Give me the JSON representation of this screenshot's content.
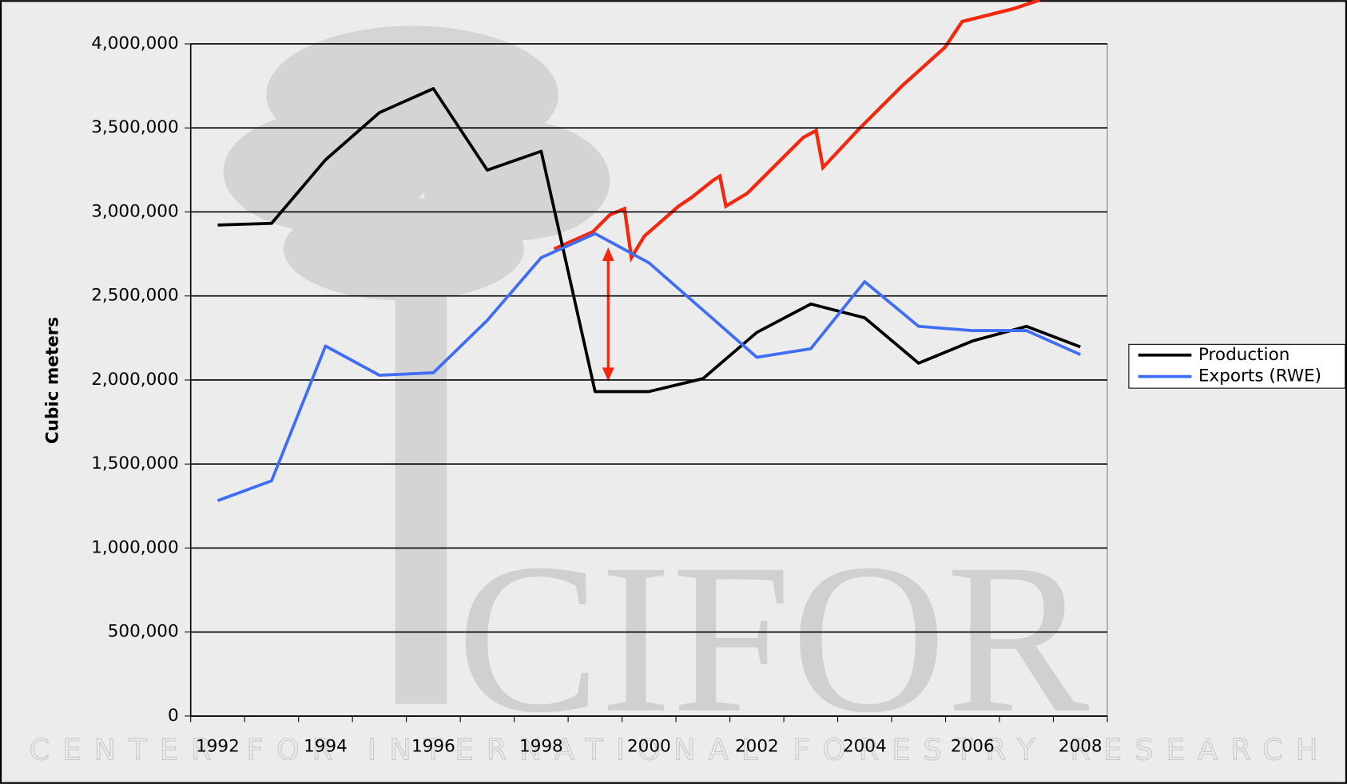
{
  "chart_data": {
    "type": "line",
    "y_label": "Cubic meters",
    "categories": [
      "1992",
      null,
      "1994",
      null,
      "1996",
      null,
      "1998",
      null,
      "2000",
      null,
      "2002",
      null,
      "2004",
      null,
      "2006",
      null,
      "2008"
    ],
    "series": [
      {
        "name": "Production",
        "color": "#000000",
        "values": [
          2922000,
          2932000,
          3310000,
          3591000,
          3734000,
          3249000,
          3361000,
          1931000,
          1931000,
          2008000,
          2283000,
          2452000,
          2370000,
          2100000,
          2232000,
          2319000,
          2197000
        ]
      },
      {
        "name": "Exports (RWE)",
        "color": "#3f6ef5",
        "values": [
          1282000,
          1400000,
          2202000,
          2028000,
          2043000,
          2355000,
          2728000,
          2871000,
          2697000,
          2416000,
          2135000,
          2186000,
          2585000,
          2319000,
          2294000,
          2294000,
          2151000
        ]
      }
    ],
    "ylim": [
      0,
      4000000
    ],
    "yticks": [
      0,
      {
        "value": 500000,
        "label": "500,000"
      },
      {
        "value": 1000000,
        "label": "1,000,000"
      },
      {
        "value": 1500000,
        "label": "1,500,000"
      },
      {
        "value": 2000000,
        "label": "2,000,000"
      },
      {
        "value": 2500000,
        "label": "2,500,000"
      },
      {
        "value": 3000000,
        "label": "3,000,000"
      },
      {
        "value": 3500000,
        "label": "3,500,000"
      },
      {
        "value": 4000000,
        "label": "4,000,000"
      }
    ],
    "grid": true,
    "legend": "right"
  },
  "background": {
    "logo": "CIFOR",
    "tagline": "CENTER FOR INTERNATIONAL FORESTRY RESEARCH"
  }
}
